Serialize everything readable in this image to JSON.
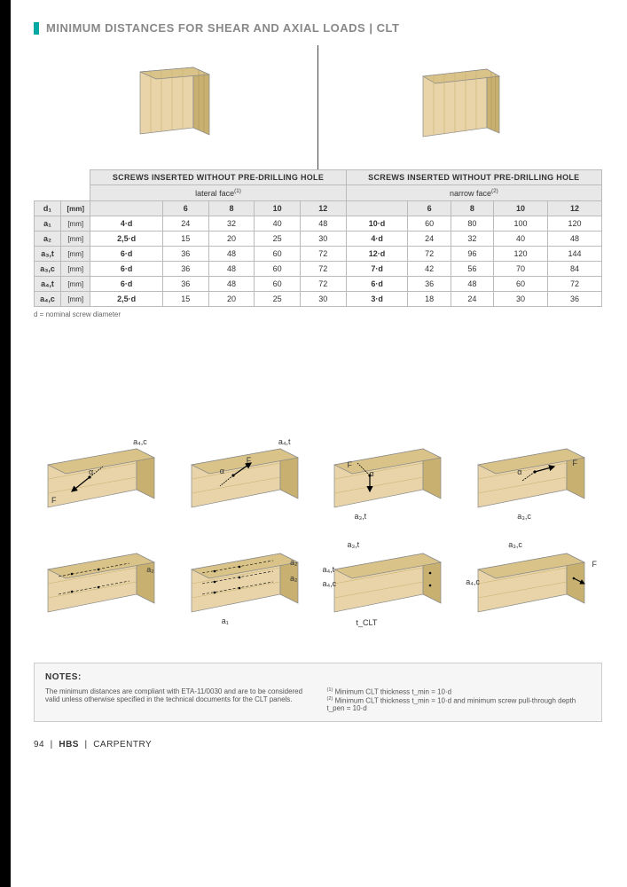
{
  "colors": {
    "accent": "#00a7a3",
    "text_muted": "#888888",
    "wood_light": "#e8d4a8",
    "wood_med": "#d9c389",
    "wood_dark": "#c8b070",
    "grid": "#bbbbbb",
    "bg_light": "#e8e8e8",
    "notes_bg": "#f6f6f6"
  },
  "title": "MINIMUM DISTANCES FOR SHEAR AND AXIAL LOADS | CLT",
  "table": {
    "group_headers": [
      "SCREWS INSERTED WITHOUT PRE-DRILLING HOLE",
      "SCREWS INSERTED WITHOUT PRE-DRILLING HOLE"
    ],
    "sub_headers": [
      "lateral face",
      "narrow face"
    ],
    "sub_header_refs": [
      "(1)",
      "(2)"
    ],
    "d1_label": "d₁",
    "unit_header": "[mm]",
    "columns_left": [
      "6",
      "8",
      "10",
      "12"
    ],
    "columns_right": [
      "6",
      "8",
      "10",
      "12"
    ],
    "rows": [
      {
        "label": "a₁",
        "unit": "[mm]",
        "formula_l": "4·d",
        "vals_l": [
          "24",
          "32",
          "40",
          "48"
        ],
        "formula_r": "10·d",
        "vals_r": [
          "60",
          "80",
          "100",
          "120"
        ]
      },
      {
        "label": "a₂",
        "unit": "[mm]",
        "formula_l": "2,5·d",
        "vals_l": [
          "15",
          "20",
          "25",
          "30"
        ],
        "formula_r": "4·d",
        "vals_r": [
          "24",
          "32",
          "40",
          "48"
        ]
      },
      {
        "label": "a₃,t",
        "unit": "[mm]",
        "formula_l": "6·d",
        "vals_l": [
          "36",
          "48",
          "60",
          "72"
        ],
        "formula_r": "12·d",
        "vals_r": [
          "72",
          "96",
          "120",
          "144"
        ]
      },
      {
        "label": "a₃,c",
        "unit": "[mm]",
        "formula_l": "6·d",
        "vals_l": [
          "36",
          "48",
          "60",
          "72"
        ],
        "formula_r": "7·d",
        "vals_r": [
          "42",
          "56",
          "70",
          "84"
        ]
      },
      {
        "label": "a₄,t",
        "unit": "[mm]",
        "formula_l": "6·d",
        "vals_l": [
          "36",
          "48",
          "60",
          "72"
        ],
        "formula_r": "6·d",
        "vals_r": [
          "36",
          "48",
          "60",
          "72"
        ]
      },
      {
        "label": "a₄,c",
        "unit": "[mm]",
        "formula_l": "2,5·d",
        "vals_l": [
          "15",
          "20",
          "25",
          "30"
        ],
        "formula_r": "3·d",
        "vals_r": [
          "18",
          "24",
          "30",
          "36"
        ]
      }
    ]
  },
  "under_note": "d = nominal screw diameter",
  "diagram_labels": {
    "r1c1_tl": "a₄,c",
    "r1c1_bl": "F",
    "r1c1_alpha": "α",
    "r1c2_tr": "a₄,t",
    "r1c2_f": "F",
    "r1c2_alpha": "α",
    "r1c3_f": "F",
    "r1c3_alpha": "α",
    "r1c3_bot": "a₃,t",
    "r1c4_f": "F",
    "r1c4_alpha": "α",
    "r1c4_bot": "a₃,c",
    "r2c1_r": "a₂",
    "r2c2_r1": "a₂",
    "r2c2_r2": "a₂",
    "r2c2_bot": "a₁",
    "r2c3_tl": "a₃,t",
    "r2c3_a4t": "a₄,t",
    "r2c3_a4c": "a₄,c",
    "r2c3_bot": "t_CLT",
    "r2c4_tl": "a₃,c",
    "r2c4_f": "F",
    "r2c4_a4c": "a₄,c"
  },
  "notes": {
    "heading": "NOTES:",
    "left": "The minimum distances are compliant with ETA-11/0030 and are to be considered valid unless otherwise specified in the technical documents for the CLT panels.",
    "right1_ref": "(1)",
    "right1": " Minimum CLT thickness t_min = 10·d",
    "right2_ref": "(2)",
    "right2": " Minimum CLT thickness t_min = 10·d and minimum screw pull-through depth t_pen = 10·d"
  },
  "footer": {
    "page": "94",
    "mid": "HBS",
    "cat": "CARPENTRY"
  }
}
